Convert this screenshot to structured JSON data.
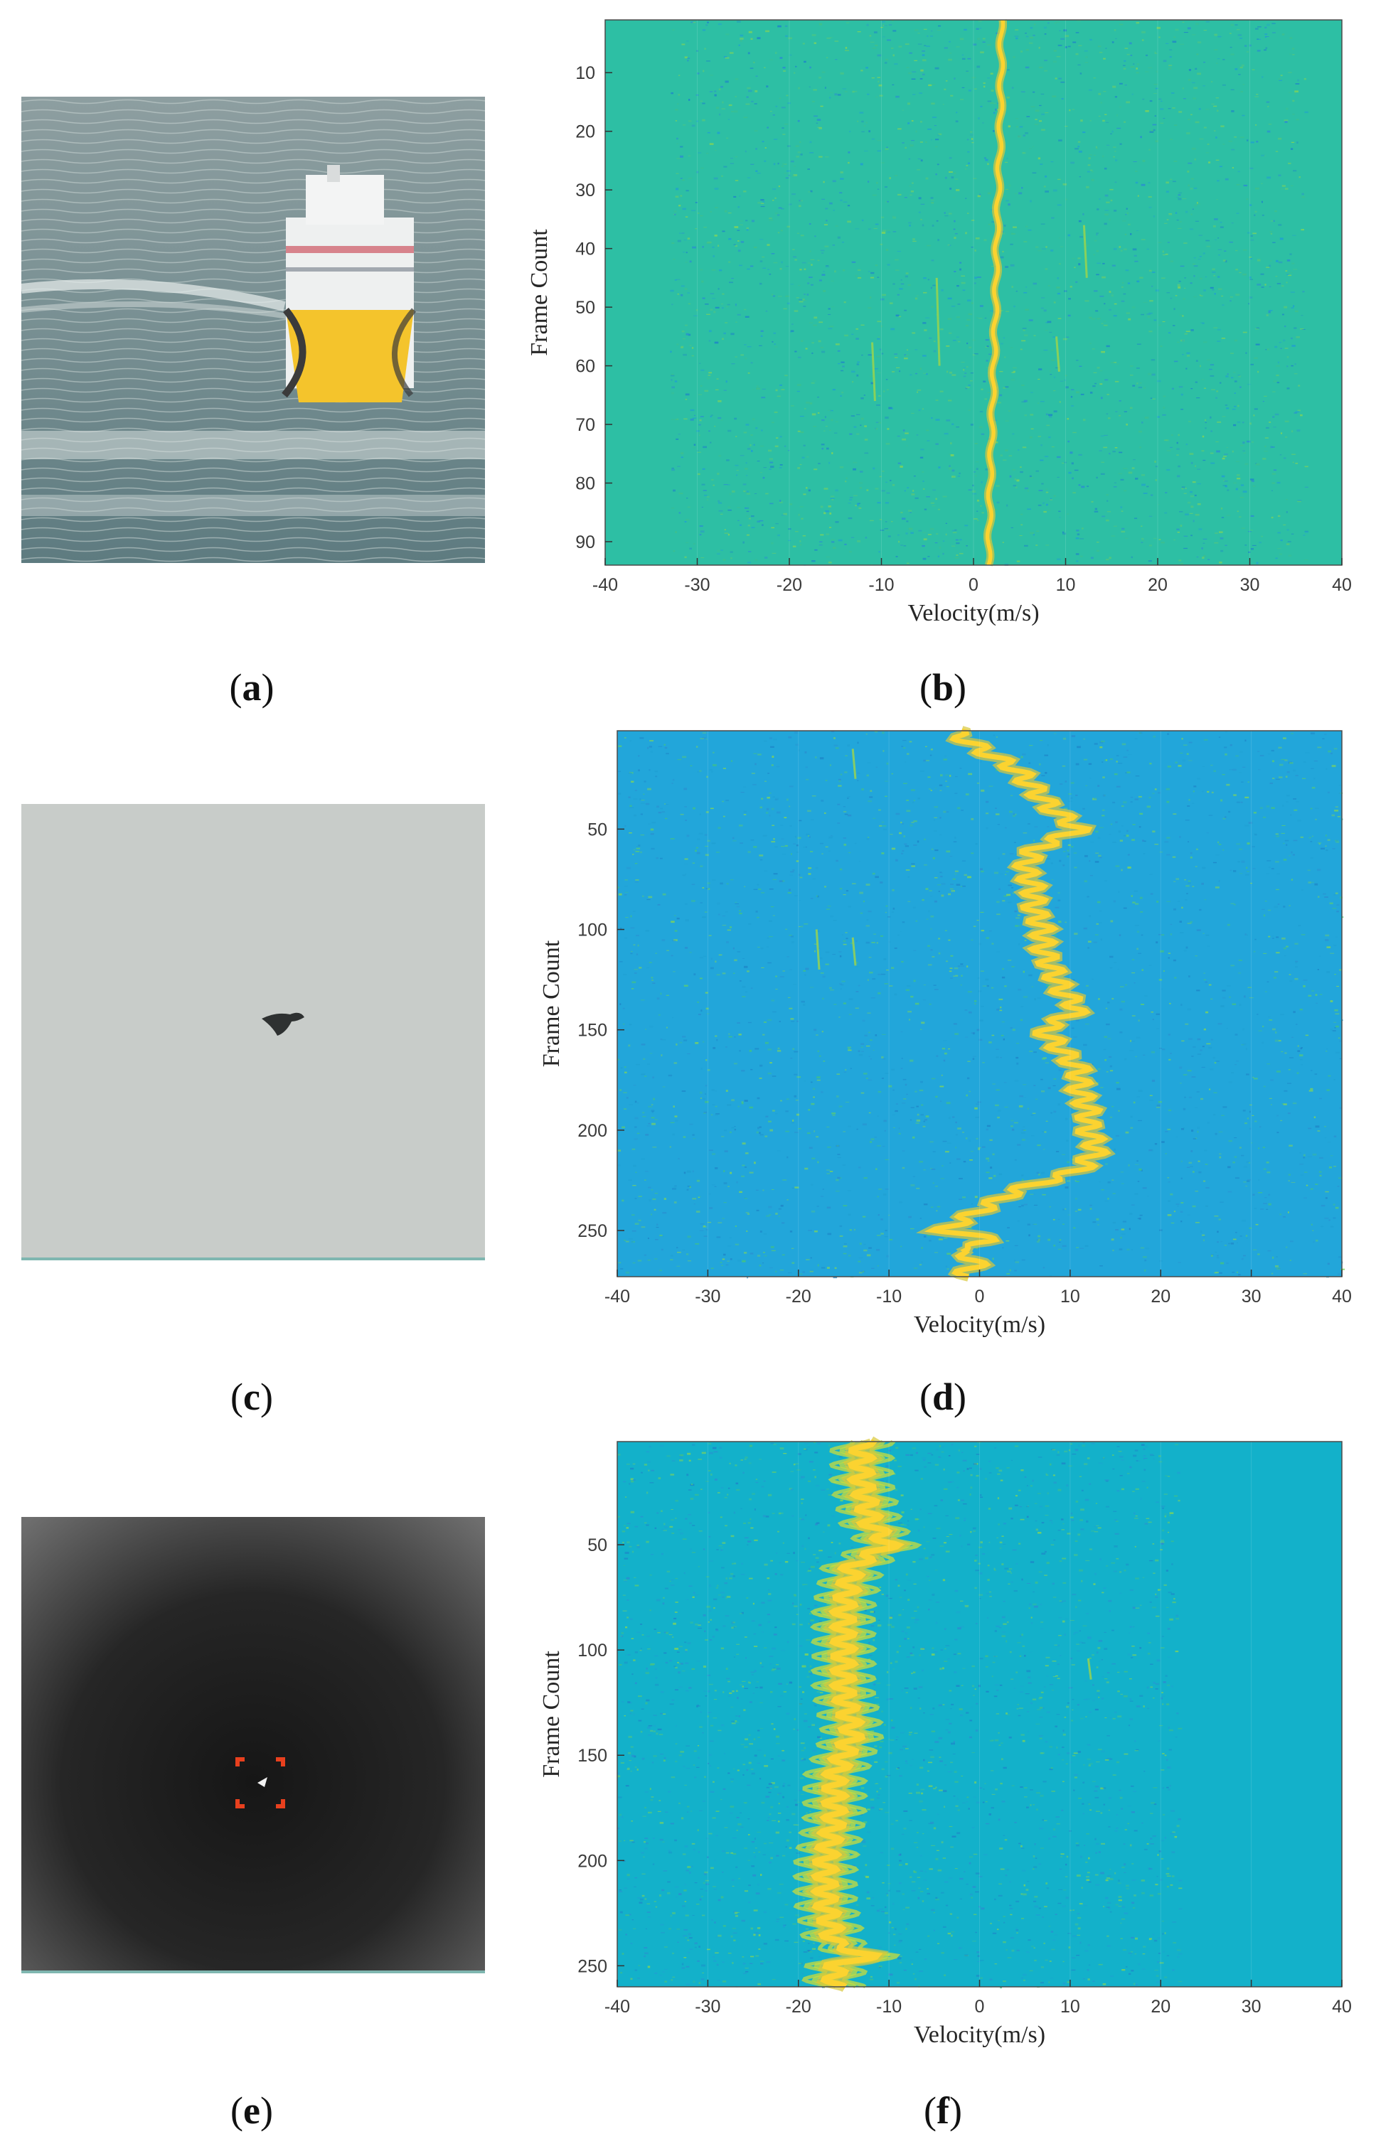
{
  "panels": [
    {
      "id": "a",
      "caption_open": "(",
      "caption_letter": "a",
      "caption_close": ")",
      "description": "ship"
    },
    {
      "id": "b",
      "caption_open": "(",
      "caption_letter": "b",
      "caption_close": ")"
    },
    {
      "id": "c",
      "caption_open": "(",
      "caption_letter": "c",
      "caption_close": ")",
      "description": "bird"
    },
    {
      "id": "d",
      "caption_open": "(",
      "caption_letter": "d",
      "caption_close": ")"
    },
    {
      "id": "e",
      "caption_open": "(",
      "caption_letter": "e",
      "caption_close": ")",
      "description": "drone"
    },
    {
      "id": "f",
      "caption_open": "(",
      "caption_letter": "f",
      "caption_close": ")"
    }
  ],
  "colors": {
    "colormap_low": "#1e9fd6",
    "colormap_mid": "#2fc0a0",
    "colormap_high": "#fbd330",
    "ridge": "#f6e03a"
  },
  "chart_data": [
    {
      "panel": "b",
      "type": "heatmap",
      "xlabel": "Velocity(m/s)",
      "ylabel": "Frame Count",
      "xlim": [
        -40,
        40
      ],
      "ylim": [
        1,
        94
      ],
      "y_reversed": true,
      "xticks": [
        -40,
        -30,
        -20,
        -10,
        0,
        10,
        20,
        30,
        40
      ],
      "yticks": [
        10,
        20,
        30,
        40,
        50,
        60,
        70,
        80,
        90
      ],
      "background": "#2dbfa4",
      "noise_xlim": [
        -33,
        36
      ],
      "ridge": {
        "frames": [
          1,
          10,
          20,
          30,
          40,
          50,
          60,
          70,
          80,
          90,
          94
        ],
        "velocity": [
          3,
          3,
          2.9,
          2.7,
          2.5,
          2.4,
          2.2,
          2,
          1.8,
          1.7,
          1.6
        ],
        "wobble": 0.2,
        "width": 0.8
      },
      "weak_tracks": [
        {
          "x": -11,
          "y0": 56,
          "y1": 66
        },
        {
          "x": -4,
          "y0": 45,
          "y1": 60
        },
        {
          "x": 12,
          "y0": 36,
          "y1": 45
        },
        {
          "x": 9,
          "y0": 55,
          "y1": 61
        }
      ]
    },
    {
      "panel": "d",
      "type": "heatmap",
      "xlabel": "Velocity(m/s)",
      "ylabel": "Frame Count",
      "xlim": [
        -40,
        40
      ],
      "ylim": [
        1,
        273
      ],
      "y_reversed": true,
      "xticks": [
        -40,
        -30,
        -20,
        -10,
        0,
        10,
        20,
        30,
        40
      ],
      "yticks": [
        50,
        100,
        150,
        200,
        250
      ],
      "background": "#22a6da",
      "noise_xlim": [
        -40,
        40
      ],
      "ridge": {
        "frames": [
          1,
          10,
          20,
          30,
          40,
          50,
          60,
          70,
          80,
          90,
          100,
          110,
          120,
          130,
          140,
          150,
          160,
          170,
          180,
          190,
          200,
          210,
          220,
          230,
          240,
          250,
          255,
          260,
          265,
          273
        ],
        "velocity": [
          -3,
          0,
          4,
          6,
          8,
          11,
          6,
          5,
          6,
          6,
          7,
          7,
          8,
          9,
          11,
          7,
          9,
          11,
          11,
          12,
          12,
          13,
          11,
          4,
          0,
          -4,
          2,
          -3,
          0,
          -2
        ],
        "wobble": 1.3,
        "width": 1.0
      },
      "weak_tracks": [
        {
          "x": -18,
          "y0": 100,
          "y1": 120
        },
        {
          "x": -14,
          "y0": 104,
          "y1": 118
        },
        {
          "x": -14,
          "y0": 10,
          "y1": 25
        }
      ]
    },
    {
      "panel": "f",
      "type": "heatmap",
      "xlabel": "Velocity(m/s)",
      "ylabel": "Frame Count",
      "xlim": [
        -40,
        40
      ],
      "ylim": [
        1,
        260
      ],
      "y_reversed": true,
      "xticks": [
        -40,
        -30,
        -20,
        -10,
        0,
        10,
        20,
        30,
        40
      ],
      "yticks": [
        50,
        100,
        150,
        200,
        250
      ],
      "background": "#13b1ca",
      "noise_xlim": [
        -40,
        22
      ],
      "ridge": {
        "frames": [
          1,
          20,
          40,
          50,
          60,
          80,
          100,
          120,
          140,
          160,
          180,
          200,
          220,
          240,
          245,
          250,
          260
        ],
        "velocity": [
          -13,
          -13,
          -12,
          -10,
          -14,
          -15,
          -15,
          -15,
          -14,
          -16,
          -16,
          -17,
          -17,
          -16,
          -12,
          -16,
          -16
        ],
        "wobble": 1.2,
        "width": 1.2,
        "parallel_offsets": [
          -2.2,
          -1.1,
          1.1,
          2.2
        ]
      },
      "weak_tracks": [
        {
          "x": 12,
          "y0": 104,
          "y1": 114
        }
      ]
    }
  ]
}
